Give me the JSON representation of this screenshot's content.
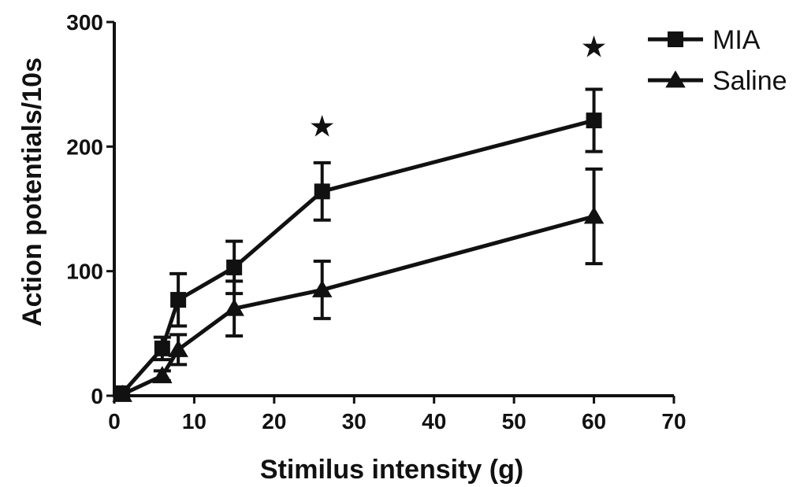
{
  "chart_data": {
    "type": "line",
    "xlabel": "Stimilus intensity (g)",
    "ylabel": "Action potentials/10s",
    "xlim": [
      0,
      70
    ],
    "ylim": [
      0,
      300
    ],
    "x_ticks": [
      0,
      10,
      20,
      30,
      40,
      50,
      60,
      70
    ],
    "y_ticks": [
      0,
      100,
      200,
      300
    ],
    "grid": false,
    "legend_position": "top-right",
    "series": [
      {
        "name": "MIA",
        "marker": "square",
        "color": "#111111",
        "x": [
          1,
          6,
          8,
          15,
          26,
          60
        ],
        "y": [
          2,
          38,
          77,
          103,
          164,
          221
        ],
        "err": [
          2,
          9,
          21,
          21,
          23,
          25
        ]
      },
      {
        "name": "Saline",
        "marker": "triangle",
        "color": "#111111",
        "x": [
          1,
          6,
          8,
          15,
          26,
          60
        ],
        "y": [
          1,
          16,
          37,
          70,
          85,
          144
        ],
        "err": [
          1,
          4,
          12,
          22,
          23,
          38
        ]
      }
    ],
    "annotations": [
      {
        "text": "★",
        "x": 26,
        "y": 208
      },
      {
        "text": "★",
        "x": 60,
        "y": 272
      }
    ]
  }
}
